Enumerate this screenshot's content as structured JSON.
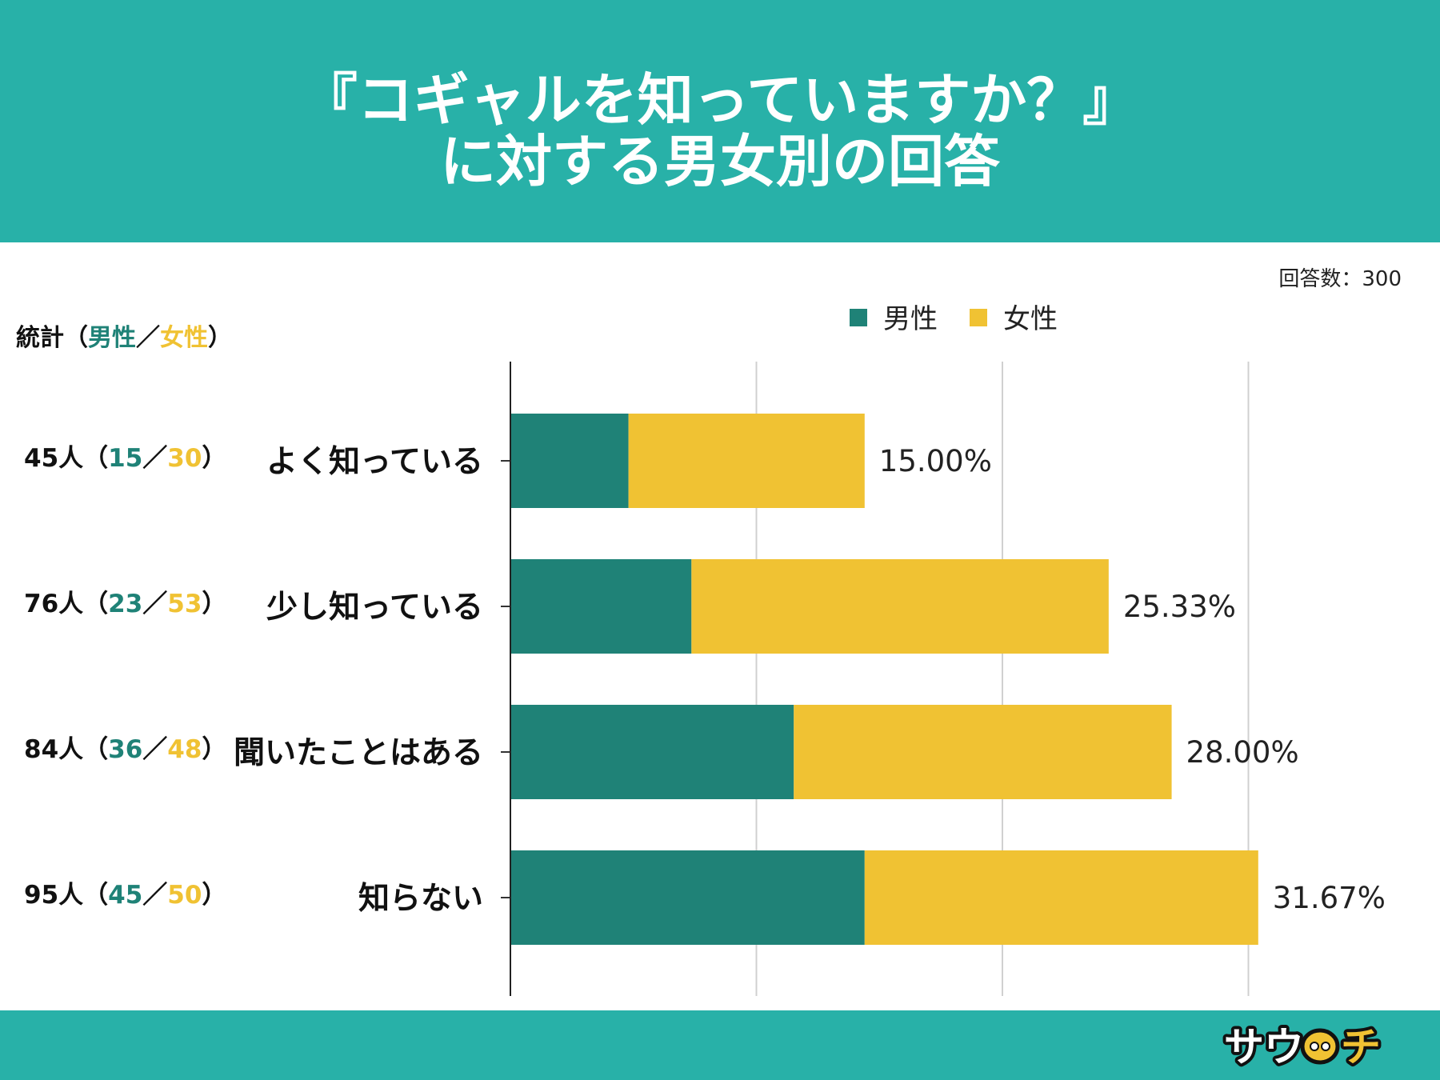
{
  "header": {
    "title_line1": "『コギャルを知っていますか？』",
    "title_line2": "に対する男女別の回答"
  },
  "respondents": "回答数：300",
  "stats_header": {
    "prefix": "統計（",
    "male": "男性",
    "sep": "／",
    "female": "女性",
    "suffix": "）"
  },
  "stats": [
    {
      "total": "45人（",
      "male": "15",
      "sep": "／",
      "female": "30",
      "close": "）"
    },
    {
      "total": "76人（",
      "male": "23",
      "sep": "／",
      "female": "53",
      "close": "）"
    },
    {
      "total": "84人（",
      "male": "36",
      "sep": "／",
      "female": "48",
      "close": "）"
    },
    {
      "total": "95人（",
      "male": "45",
      "sep": "／",
      "female": "50",
      "close": "）"
    }
  ],
  "colors": {
    "header_bg": "#28b1a8",
    "male": "#1f8277",
    "female": "#f0c233"
  },
  "chart_data": {
    "type": "bar",
    "orientation": "horizontal",
    "stacked": true,
    "categories": [
      "よく知っている",
      "少し知っている",
      "聞いたことはある",
      "知らない"
    ],
    "series": [
      {
        "name": "男性",
        "color": "#1f8277",
        "values": [
          15,
          23,
          36,
          45
        ]
      },
      {
        "name": "女性",
        "color": "#f0c233",
        "values": [
          30,
          53,
          48,
          50
        ]
      }
    ],
    "data_labels": [
      "15.00%",
      "25.33%",
      "28.00%",
      "31.67%"
    ],
    "xlim": [
      0,
      125
    ],
    "grid": true,
    "legend_position": "top"
  }
}
